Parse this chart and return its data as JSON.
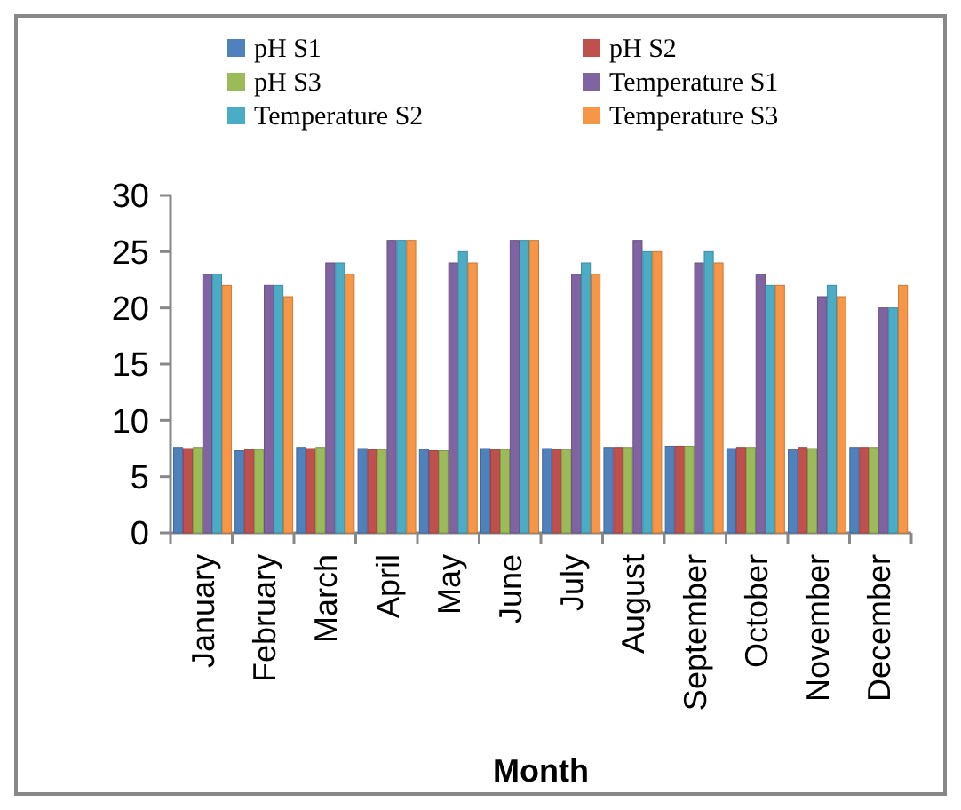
{
  "chart_data": {
    "type": "bar",
    "xlabel": "Month",
    "categories": [
      "January",
      "February",
      "March",
      "April",
      "May",
      "June",
      "July",
      "August",
      "September",
      "October",
      "November",
      "December"
    ],
    "series": [
      {
        "name": "pH S1",
        "color": "#4f81bd",
        "values": [
          7.6,
          7.3,
          7.6,
          7.5,
          7.4,
          7.5,
          7.5,
          7.6,
          7.7,
          7.5,
          7.4,
          7.6
        ]
      },
      {
        "name": "pH S2",
        "color": "#c0504d",
        "values": [
          7.5,
          7.4,
          7.5,
          7.4,
          7.3,
          7.4,
          7.4,
          7.6,
          7.7,
          7.6,
          7.6,
          7.6
        ]
      },
      {
        "name": "pH S3",
        "color": "#9bbb59",
        "values": [
          7.6,
          7.4,
          7.6,
          7.4,
          7.3,
          7.4,
          7.4,
          7.6,
          7.7,
          7.6,
          7.5,
          7.6
        ]
      },
      {
        "name": "Temperature S1",
        "color": "#8064a2",
        "values": [
          23,
          22,
          24,
          26,
          24,
          26,
          23,
          26,
          24,
          23,
          21,
          20
        ]
      },
      {
        "name": "Temperature S2",
        "color": "#4bacc6",
        "values": [
          23,
          22,
          24,
          26,
          25,
          26,
          24,
          25,
          25,
          22,
          22,
          20
        ]
      },
      {
        "name": "Temperature S3",
        "color": "#f79646",
        "values": [
          22,
          21,
          23,
          26,
          24,
          26,
          23,
          25,
          24,
          22,
          21,
          22
        ]
      }
    ],
    "ylim": [
      0,
      30
    ],
    "yticks": [
      0,
      5,
      10,
      15,
      20,
      25,
      30
    ],
    "grid": false,
    "legend": "top"
  }
}
